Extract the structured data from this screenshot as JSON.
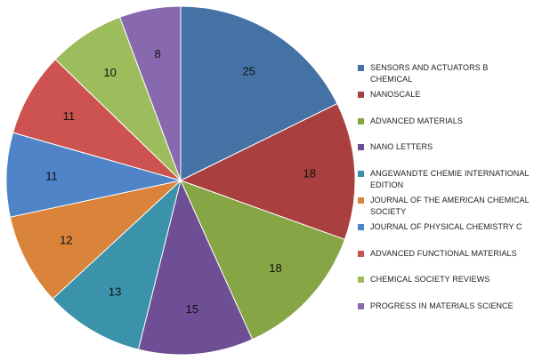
{
  "chart_data": {
    "type": "pie",
    "title": "",
    "start_angle_deg": 0,
    "direction": "clockwise",
    "legend_position": "right",
    "slices": [
      {
        "label": "SENSORS AND ACTUATORS B CHEMICAL",
        "value": 25,
        "color": "#4472A5"
      },
      {
        "label": "NANOSCALE",
        "value": 18,
        "color": "#A9403F"
      },
      {
        "label": "ADVANCED MATERIALS",
        "value": 18,
        "color": "#86A544"
      },
      {
        "label": "NANO LETTERS",
        "value": 15,
        "color": "#6E4E94"
      },
      {
        "label": "ANGEWANDTE CHEMIE INTERNATIONAL EDITION",
        "value": 13,
        "color": "#3B93AB"
      },
      {
        "label": "JOURNAL OF THE AMERICAN CHEMICAL SOCIETY",
        "value": 12,
        "color": "#D9843A"
      },
      {
        "label": "JOURNAL OF PHYSICAL CHEMISTRY C",
        "value": 11,
        "color": "#4F84C8"
      },
      {
        "label": "ADVANCED FUNCTIONAL MATERIALS",
        "value": 11,
        "color": "#CD5350"
      },
      {
        "label": "CHEMICAL SOCIETY REVIEWS",
        "value": 10,
        "color": "#9DBD5C"
      },
      {
        "label": "PROGRESS IN MATERIALS SCIENCE",
        "value": 8,
        "color": "#8868AE"
      }
    ]
  }
}
